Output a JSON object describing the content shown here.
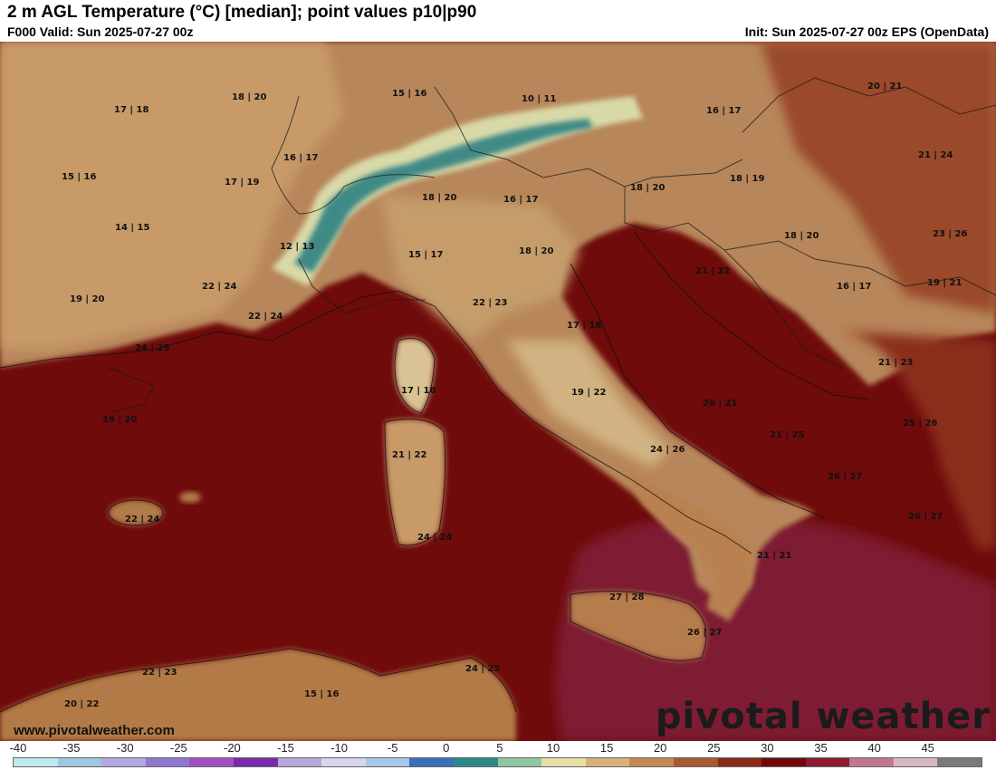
{
  "header": {
    "title": "2 m AGL Temperature (°C) [median]; point values p10|p90",
    "valid": "F000 Valid: Sun 2025-07-27 00z",
    "init": "Init: Sun 2025-07-27 00z EPS (OpenData)"
  },
  "footer": {
    "website": "www.pivotalweather.com",
    "brand": "pivotal weather"
  },
  "colorbar": {
    "ticks": [
      "-40",
      "-35",
      "-30",
      "-25",
      "-20",
      "-15",
      "-10",
      "-5",
      "0",
      "5",
      "10",
      "15",
      "20",
      "25",
      "30",
      "35",
      "40",
      "45"
    ],
    "colors": [
      "#bfe8f0",
      "#9fc8e0",
      "#b4a8e0",
      "#9078d0",
      "#a050c0",
      "#7a2aa8",
      "#b8a8d8",
      "#d6d6ee",
      "#a8c8e8",
      "#3b6fb8",
      "#2a8a8a",
      "#8ec6a0",
      "#e6e0a6",
      "#d8b078",
      "#c48a52",
      "#a65a30",
      "#8a2a1a",
      "#6e0a0a",
      "#8c1a30",
      "#c07890",
      "#d8b8c0",
      "#7a7a7a"
    ]
  },
  "point_values": [
    {
      "label": "17 | 18"
    },
    {
      "label": "18 | 20"
    },
    {
      "label": "15 | 16"
    },
    {
      "label": "10 | 11"
    },
    {
      "label": "16 | 17"
    },
    {
      "label": "20 | 21"
    },
    {
      "label": "15 | 16"
    },
    {
      "label": "16 | 17"
    },
    {
      "label": "17 | 19"
    },
    {
      "label": "18 | 20"
    },
    {
      "label": "16 | 17"
    },
    {
      "label": "18 | 20"
    },
    {
      "label": "18 | 19"
    },
    {
      "label": "21 | 24"
    },
    {
      "label": "14 | 15"
    },
    {
      "label": "12 | 13"
    },
    {
      "label": "15 | 17"
    },
    {
      "label": "18 | 20"
    },
    {
      "label": "18 | 20"
    },
    {
      "label": "23 | 26"
    },
    {
      "label": "21 | 22"
    },
    {
      "label": "19 | 20"
    },
    {
      "label": "22 | 24"
    },
    {
      "label": "22 | 24"
    },
    {
      "label": "22 | 23"
    },
    {
      "label": "16 | 17"
    },
    {
      "label": "19 | 21"
    },
    {
      "label": "17 | 18"
    },
    {
      "label": "24 | 25"
    },
    {
      "label": "17 | 18"
    },
    {
      "label": "21 | 23"
    },
    {
      "label": "19 | 22"
    },
    {
      "label": "20 | 21"
    },
    {
      "label": "19 | 20"
    },
    {
      "label": "25 | 26"
    },
    {
      "label": "21 | 25"
    },
    {
      "label": "24 | 26"
    },
    {
      "label": "21 | 22"
    },
    {
      "label": "26 | 27"
    },
    {
      "label": "22 | 24"
    },
    {
      "label": "26 | 27"
    },
    {
      "label": "24 | 24"
    },
    {
      "label": "21 | 21"
    },
    {
      "label": "27 | 28"
    },
    {
      "label": "26 | 27"
    },
    {
      "label": "22 | 23"
    },
    {
      "label": "24 | 25"
    },
    {
      "label": "20 | 22"
    },
    {
      "label": "15 | 16"
    }
  ]
}
